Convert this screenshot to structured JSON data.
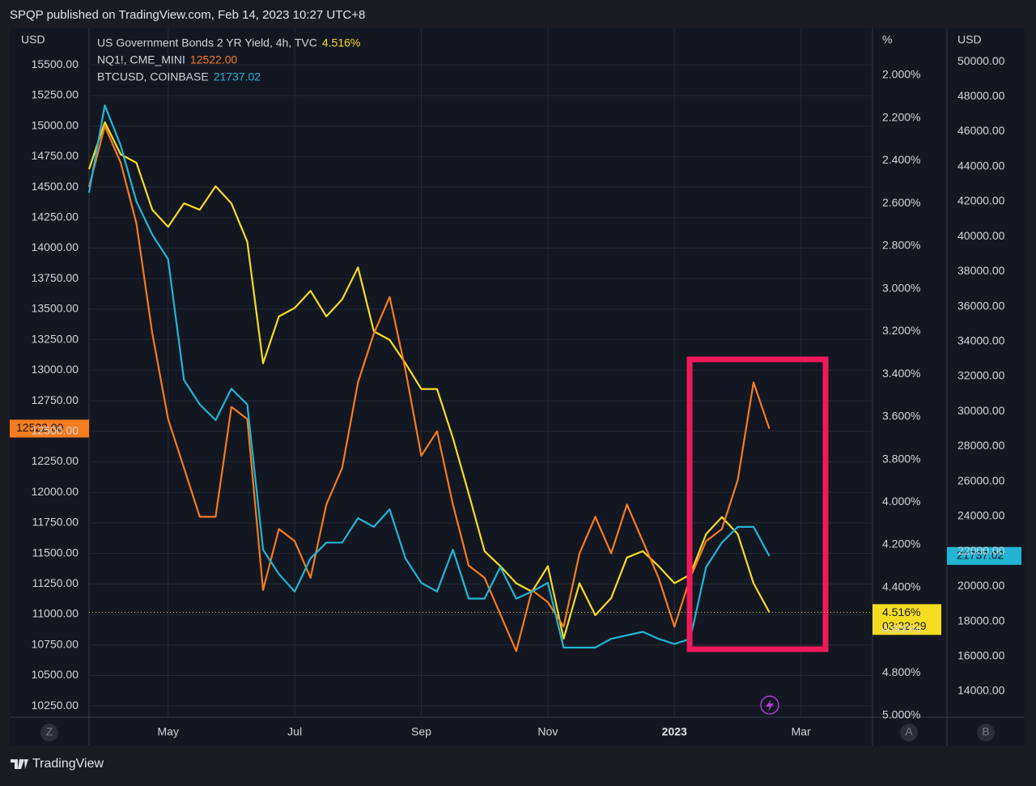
{
  "header": {
    "title": "SPQP published on TradingView.com, Feb 14, 2023 10:27 UTC+8"
  },
  "footer": {
    "brand": "TradingView"
  },
  "buttons": {
    "left": "Z",
    "right1": "A",
    "right2": "B"
  },
  "chart_data": {
    "type": "line",
    "left_axis_label": "USD",
    "y2_axis_label": "%",
    "y3_axis_label": "USD",
    "x": [
      3.75,
      4,
      4.25,
      4.5,
      4.75,
      5,
      5.25,
      5.5,
      5.75,
      6,
      6.25,
      6.5,
      6.75,
      7,
      7.25,
      7.5,
      7.75,
      8,
      8.25,
      8.5,
      8.75,
      9,
      9.25,
      9.5,
      9.75,
      10,
      10.25,
      10.5,
      10.75,
      11,
      11.25,
      11.5,
      11.75,
      12,
      12.25,
      12.5,
      12.75,
      13,
      13.25,
      13.5,
      13.75,
      14,
      14.25,
      14.5
    ],
    "xlim": [
      3.75,
      16.13
    ],
    "xticks": [
      {
        "value": 5,
        "label": "May"
      },
      {
        "value": 7,
        "label": "Jul"
      },
      {
        "value": 9,
        "label": "Sep"
      },
      {
        "value": 11,
        "label": "Nov"
      },
      {
        "value": 13,
        "label": "2023"
      },
      {
        "value": 15,
        "label": "Mar"
      }
    ],
    "ylim": [
      10165,
      15800
    ],
    "yticks": [
      {
        "value": 10250,
        "label": "10250.00"
      },
      {
        "value": 10500,
        "label": "10500.00"
      },
      {
        "value": 10750,
        "label": "10750.00"
      },
      {
        "value": 11000,
        "label": "11000.00"
      },
      {
        "value": 11250,
        "label": "11250.00"
      },
      {
        "value": 11500,
        "label": "11500.00"
      },
      {
        "value": 11750,
        "label": "11750.00"
      },
      {
        "value": 12000,
        "label": "12000.00"
      },
      {
        "value": 12250,
        "label": "12250.00"
      },
      {
        "value": 12500,
        "label": "12500.00"
      },
      {
        "value": 12750,
        "label": "12750.00"
      },
      {
        "value": 13000,
        "label": "13000.00"
      },
      {
        "value": 13250,
        "label": "13250.00"
      },
      {
        "value": 13500,
        "label": "13500.00"
      },
      {
        "value": 13750,
        "label": "13750.00"
      },
      {
        "value": 14000,
        "label": "14000.00"
      },
      {
        "value": 14250,
        "label": "14250.00"
      },
      {
        "value": 14500,
        "label": "14500.00"
      },
      {
        "value": 14750,
        "label": "14750.00"
      },
      {
        "value": 15000,
        "label": "15000.00"
      },
      {
        "value": 15250,
        "label": "15250.00"
      },
      {
        "value": 15500,
        "label": "15500.00"
      }
    ],
    "y2lim": [
      5.004,
      1.78
    ],
    "y2ticks": [
      {
        "value": 2.0,
        "label": "2.000%"
      },
      {
        "value": 2.2,
        "label": "2.200%"
      },
      {
        "value": 2.4,
        "label": "2.400%"
      },
      {
        "value": 2.6,
        "label": "2.600%"
      },
      {
        "value": 2.8,
        "label": "2.800%"
      },
      {
        "value": 3.0,
        "label": "3.000%"
      },
      {
        "value": 3.2,
        "label": "3.200%"
      },
      {
        "value": 3.4,
        "label": "3.400%"
      },
      {
        "value": 3.6,
        "label": "3.600%"
      },
      {
        "value": 3.8,
        "label": "3.800%"
      },
      {
        "value": 4.0,
        "label": "4.000%"
      },
      {
        "value": 4.2,
        "label": "4.200%"
      },
      {
        "value": 4.4,
        "label": "4.400%"
      },
      {
        "value": 4.6,
        "label": "4.600%"
      },
      {
        "value": 4.8,
        "label": "4.800%"
      },
      {
        "value": 5.0,
        "label": "5.000%"
      }
    ],
    "y3lim": [
      12565,
      51900
    ],
    "y3ticks": [
      {
        "value": 14000,
        "label": "14000.00"
      },
      {
        "value": 16000,
        "label": "16000.00"
      },
      {
        "value": 18000,
        "label": "18000.00"
      },
      {
        "value": 20000,
        "label": "20000.00"
      },
      {
        "value": 22000,
        "label": "22000.00"
      },
      {
        "value": 24000,
        "label": "24000.00"
      },
      {
        "value": 26000,
        "label": "26000.00"
      },
      {
        "value": 28000,
        "label": "28000.00"
      },
      {
        "value": 30000,
        "label": "30000.00"
      },
      {
        "value": 32000,
        "label": "32000.00"
      },
      {
        "value": 34000,
        "label": "34000.00"
      },
      {
        "value": 36000,
        "label": "36000.00"
      },
      {
        "value": 38000,
        "label": "38000.00"
      },
      {
        "value": 40000,
        "label": "40000.00"
      },
      {
        "value": 42000,
        "label": "42000.00"
      },
      {
        "value": 44000,
        "label": "44000.00"
      },
      {
        "value": 46000,
        "label": "46000.00"
      },
      {
        "value": 48000,
        "label": "48000.00"
      },
      {
        "value": 50000,
        "label": "50000.00"
      }
    ],
    "grid": true,
    "countdown": "03:32:29",
    "series": [
      {
        "name": "US Government Bonds 2 YR Yield, 4h, TVC",
        "color": "#f5dc22",
        "axis": "y2",
        "last_value_label": "4.516%",
        "values": [
          2.44,
          2.22,
          2.37,
          2.41,
          2.63,
          2.71,
          2.6,
          2.63,
          2.52,
          2.6,
          2.78,
          3.35,
          3.13,
          3.09,
          3.01,
          3.13,
          3.05,
          2.9,
          3.2,
          3.24,
          3.35,
          3.47,
          3.47,
          3.7,
          3.96,
          4.23,
          4.3,
          4.38,
          4.42,
          4.3,
          4.64,
          4.38,
          4.53,
          4.45,
          4.26,
          4.23,
          4.3,
          4.38,
          4.34,
          4.15,
          4.07,
          4.15,
          4.38,
          4.516
        ]
      },
      {
        "name": "NQ1!, CME_MINI",
        "color": "#f57c1f",
        "axis": "y",
        "last_value_label": "12522.00",
        "values": [
          14500,
          15000,
          14700,
          14200,
          13300,
          12600,
          12200,
          11800,
          11800,
          12700,
          12600,
          11200,
          11700,
          11600,
          11300,
          11900,
          12200,
          12900,
          13300,
          13600,
          13000,
          12300,
          12500,
          11900,
          11400,
          11300,
          11000,
          10700,
          11200,
          11100,
          10900,
          11500,
          11800,
          11500,
          11900,
          11600,
          11300,
          10900,
          11300,
          11600,
          11700,
          12100,
          12900,
          12522
        ]
      },
      {
        "name": "BTCUSD, COINBASE",
        "color": "#22b5d3",
        "axis": "y3",
        "last_value_label": "21737.02",
        "values": [
          42500,
          47500,
          45200,
          42000,
          40100,
          38700,
          31800,
          30400,
          29500,
          31300,
          30400,
          22100,
          20700,
          19700,
          21600,
          22500,
          22500,
          23900,
          23400,
          24400,
          21600,
          20200,
          19700,
          22100,
          19300,
          19300,
          21100,
          19300,
          19700,
          20200,
          16500,
          16500,
          16500,
          17000,
          17200,
          17400,
          17000,
          16700,
          17000,
          21100,
          22500,
          23400,
          23400,
          21737.02
        ]
      }
    ]
  }
}
